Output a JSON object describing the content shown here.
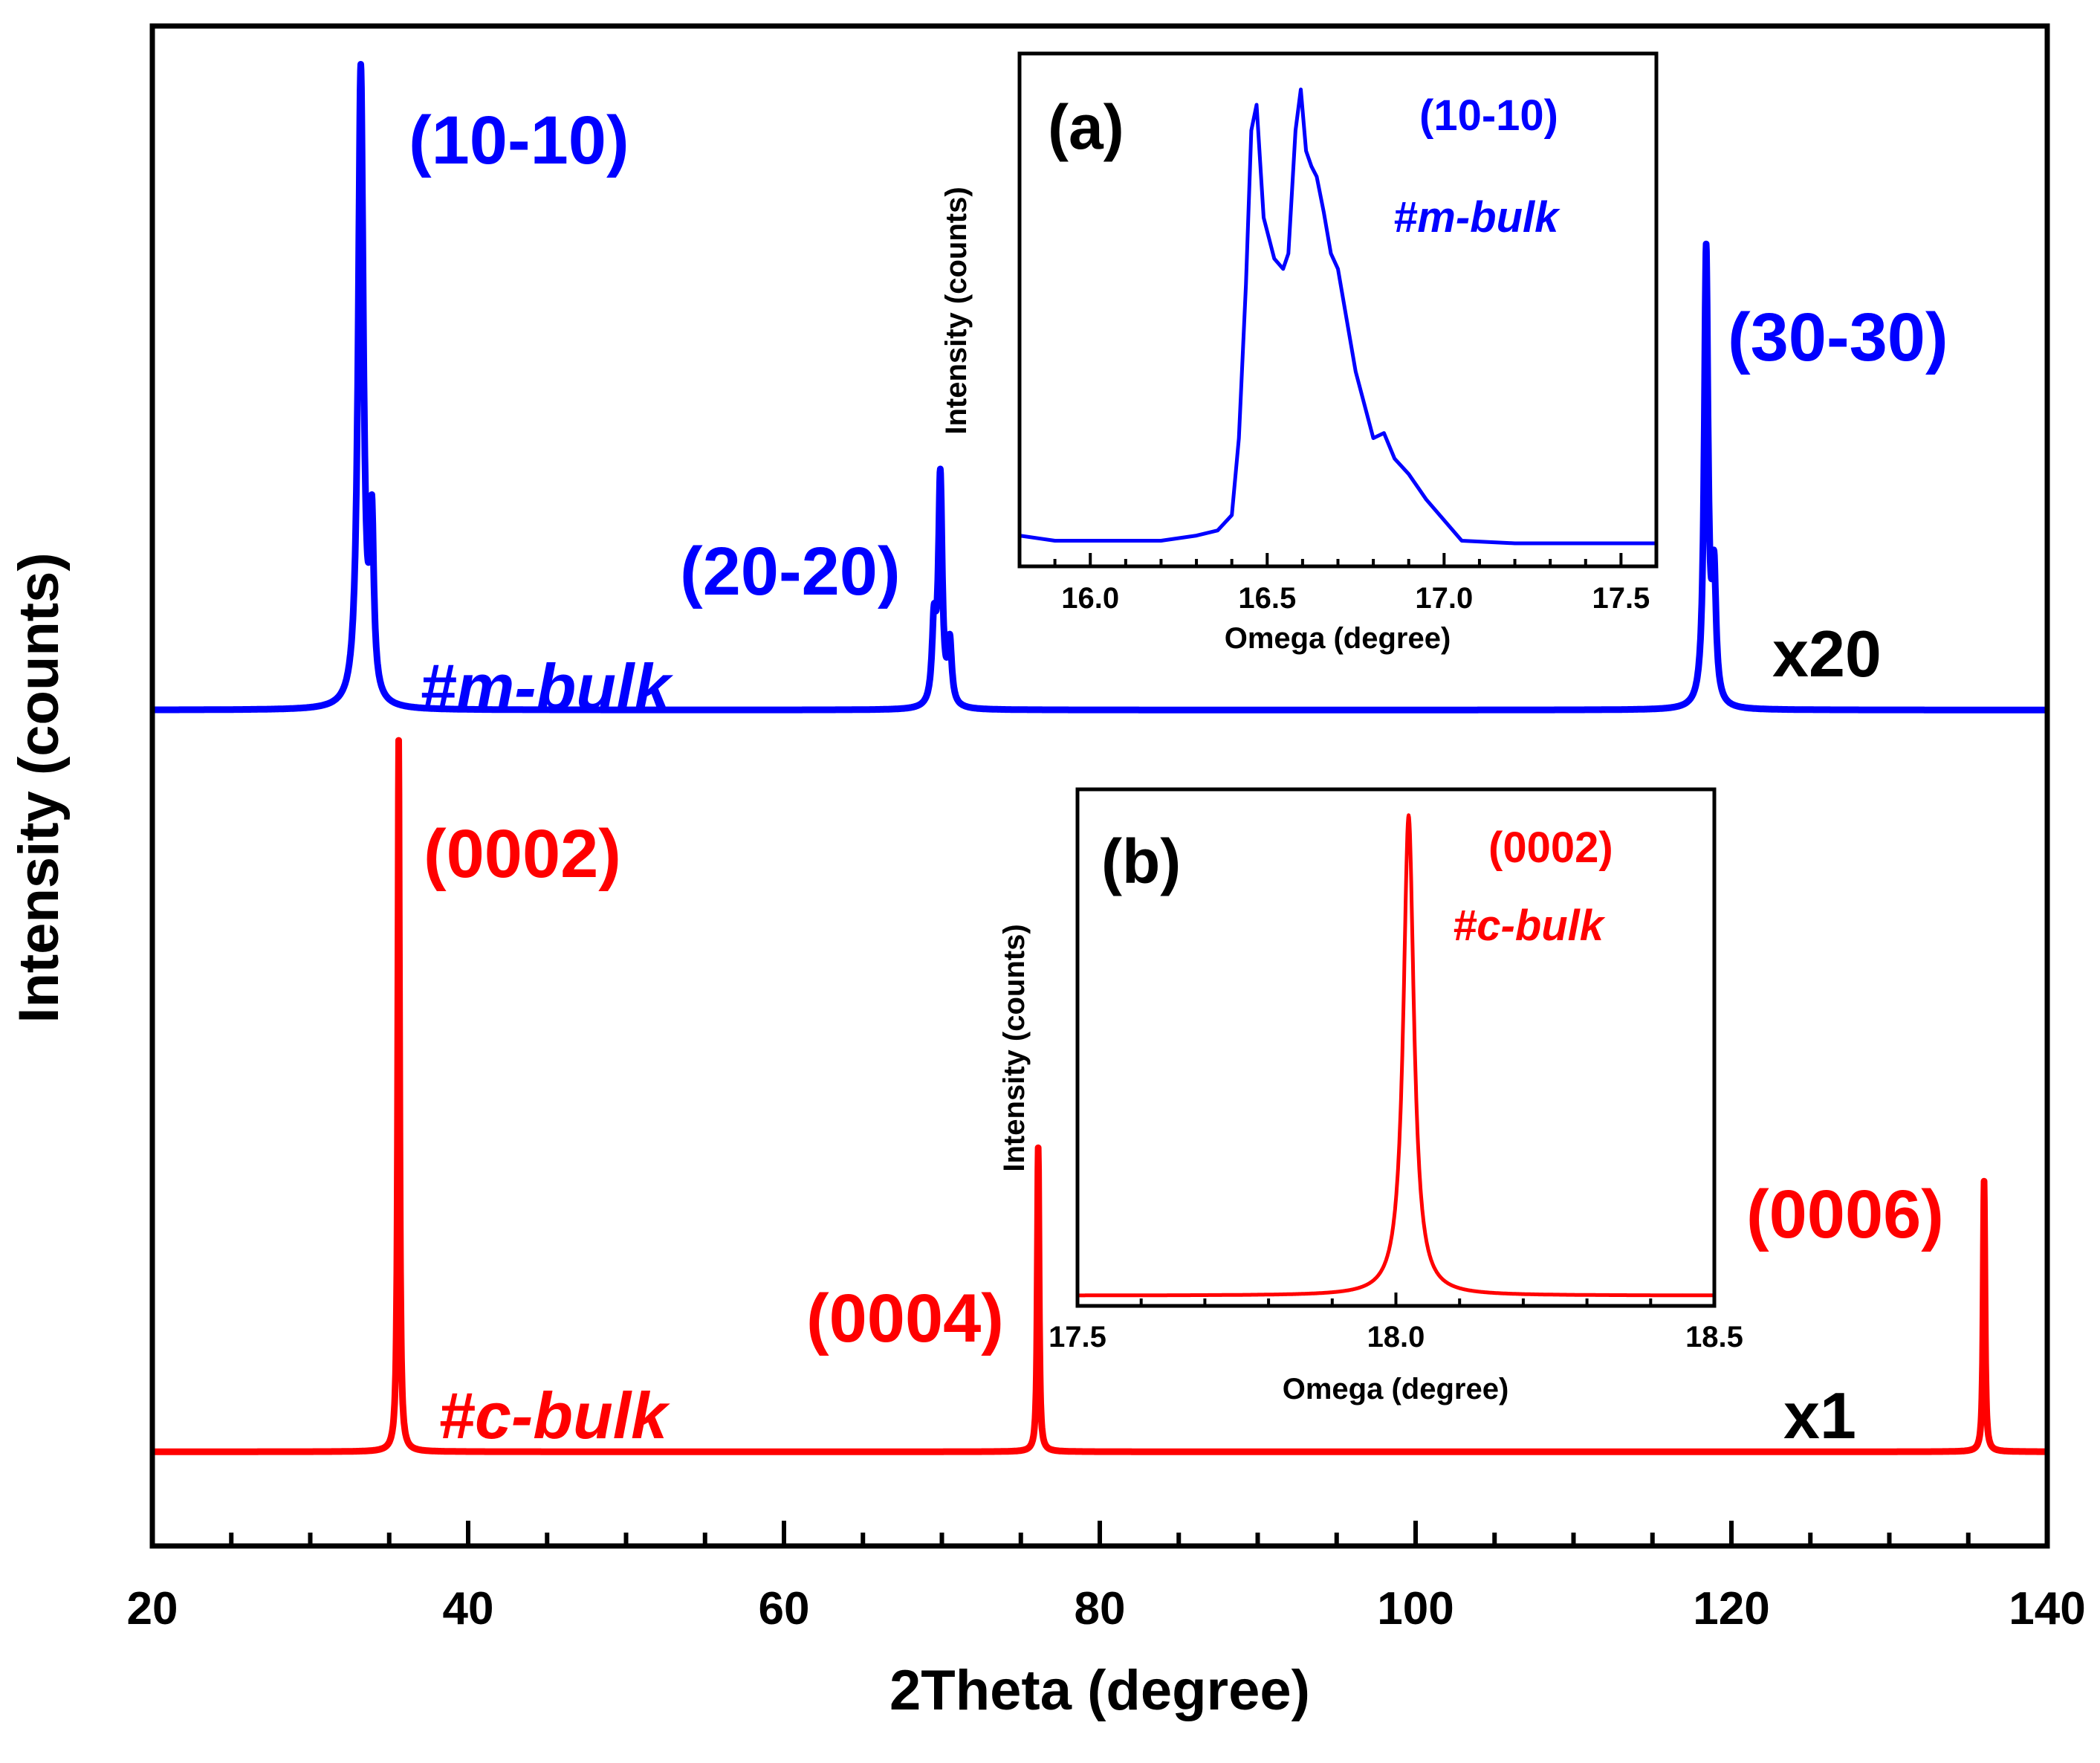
{
  "chart_data": [
    {
      "type": "line",
      "title": "",
      "xlabel": "2Theta (degree)",
      "ylabel": "Intensity (counts)",
      "xlim": [
        20,
        140
      ],
      "ylim": [
        0,
        1.0
      ],
      "x_ticks": [
        "20",
        "40",
        "60",
        "80",
        "100",
        "120",
        "140"
      ],
      "series": [
        {
          "name": "#m-bulk",
          "color": "#0000ff",
          "scale": "x20",
          "baseline": 0.55,
          "peaks": [
            {
              "x": 33.2,
              "height": 0.42,
              "width": 0.2,
              "label": "(10-10)"
            },
            {
              "x": 33.9,
              "height": 0.11,
              "width": 0.15,
              "label": ""
            },
            {
              "x": 69.9,
              "height": 0.15,
              "width": 0.15,
              "label": "(20-20)"
            },
            {
              "x": 69.5,
              "height": 0.05,
              "width": 0.15,
              "label": ""
            },
            {
              "x": 70.5,
              "height": 0.04,
              "width": 0.15,
              "label": ""
            },
            {
              "x": 118.4,
              "height": 0.3,
              "width": 0.15,
              "label": "(30-30)"
            },
            {
              "x": 118.9,
              "height": 0.08,
              "width": 0.15,
              "label": ""
            }
          ]
        },
        {
          "name": "#c-bulk",
          "color": "#ff0000",
          "scale": "x1",
          "baseline": 0.062,
          "peaks": [
            {
              "x": 35.6,
              "height": 0.468,
              "width": 0.07,
              "label": "(0002)"
            },
            {
              "x": 76.1,
              "height": 0.2,
              "width": 0.07,
              "label": "(0004)"
            },
            {
              "x": 136.0,
              "height": 0.178,
              "width": 0.07,
              "label": "(0006)"
            }
          ]
        }
      ],
      "annotations": [
        {
          "text": "(10-10)",
          "color": "#0000ff"
        },
        {
          "text": "(20-20)",
          "color": "#0000ff"
        },
        {
          "text": "(30-30)",
          "color": "#0000ff"
        },
        {
          "text": "#m-bulk",
          "color": "#0000ff"
        },
        {
          "text": "x20",
          "color": "#000000"
        },
        {
          "text": "(0002)",
          "color": "#ff0000"
        },
        {
          "text": "(0004)",
          "color": "#ff0000"
        },
        {
          "text": "(0006)",
          "color": "#ff0000"
        },
        {
          "text": "#c-bulk",
          "color": "#ff0000"
        },
        {
          "text": "x1",
          "color": "#000000"
        }
      ]
    },
    {
      "type": "line",
      "panel": "(a)",
      "xlabel": "Omega (degree)",
      "ylabel": "Intensity (counts)",
      "xlim": [
        15.8,
        17.6
      ],
      "ylim": [
        0,
        1.0
      ],
      "x_ticks": [
        "16.0",
        "16.5",
        "17.0",
        "17.5"
      ],
      "series": [
        {
          "name": "#m-bulk",
          "color": "#0000ff",
          "points": [
            [
              15.8,
              0.06
            ],
            [
              15.9,
              0.05
            ],
            [
              16.0,
              0.05
            ],
            [
              16.1,
              0.05
            ],
            [
              16.2,
              0.05
            ],
            [
              16.3,
              0.06
            ],
            [
              16.36,
              0.07
            ],
            [
              16.4,
              0.1
            ],
            [
              16.42,
              0.25
            ],
            [
              16.44,
              0.55
            ],
            [
              16.455,
              0.85
            ],
            [
              16.47,
              0.9
            ],
            [
              16.49,
              0.68
            ],
            [
              16.52,
              0.6
            ],
            [
              16.545,
              0.58
            ],
            [
              16.56,
              0.61
            ],
            [
              16.58,
              0.85
            ],
            [
              16.595,
              0.93
            ],
            [
              16.61,
              0.81
            ],
            [
              16.625,
              0.78
            ],
            [
              16.64,
              0.76
            ],
            [
              16.66,
              0.69
            ],
            [
              16.68,
              0.61
            ],
            [
              16.7,
              0.58
            ],
            [
              16.75,
              0.38
            ],
            [
              16.8,
              0.25
            ],
            [
              16.83,
              0.26
            ],
            [
              16.86,
              0.21
            ],
            [
              16.9,
              0.18
            ],
            [
              16.95,
              0.13
            ],
            [
              17.0,
              0.09
            ],
            [
              17.05,
              0.05
            ],
            [
              17.2,
              0.045
            ],
            [
              17.4,
              0.045
            ],
            [
              17.6,
              0.045
            ]
          ]
        }
      ],
      "annotations": [
        {
          "text": "(a)",
          "color": "#000000"
        },
        {
          "text": "(10-10)",
          "color": "#0000ff"
        },
        {
          "text": "#m-bulk",
          "color": "#0000ff"
        }
      ]
    },
    {
      "type": "line",
      "panel": "(b)",
      "xlabel": "Omega (degree)",
      "ylabel": "Intensity (counts)",
      "xlim": [
        17.5,
        18.5
      ],
      "ylim": [
        0,
        1.0
      ],
      "x_ticks": [
        "17.5",
        "18.0",
        "18.5"
      ],
      "series": [
        {
          "name": "#c-bulk",
          "color": "#ff0000",
          "peak": {
            "x": 18.02,
            "height": 0.93,
            "width": 0.01,
            "baseline": 0.02
          }
        }
      ],
      "annotations": [
        {
          "text": "(b)",
          "color": "#000000"
        },
        {
          "text": "(0002)",
          "color": "#ff0000"
        },
        {
          "text": "#c-bulk",
          "color": "#ff0000"
        }
      ]
    }
  ]
}
